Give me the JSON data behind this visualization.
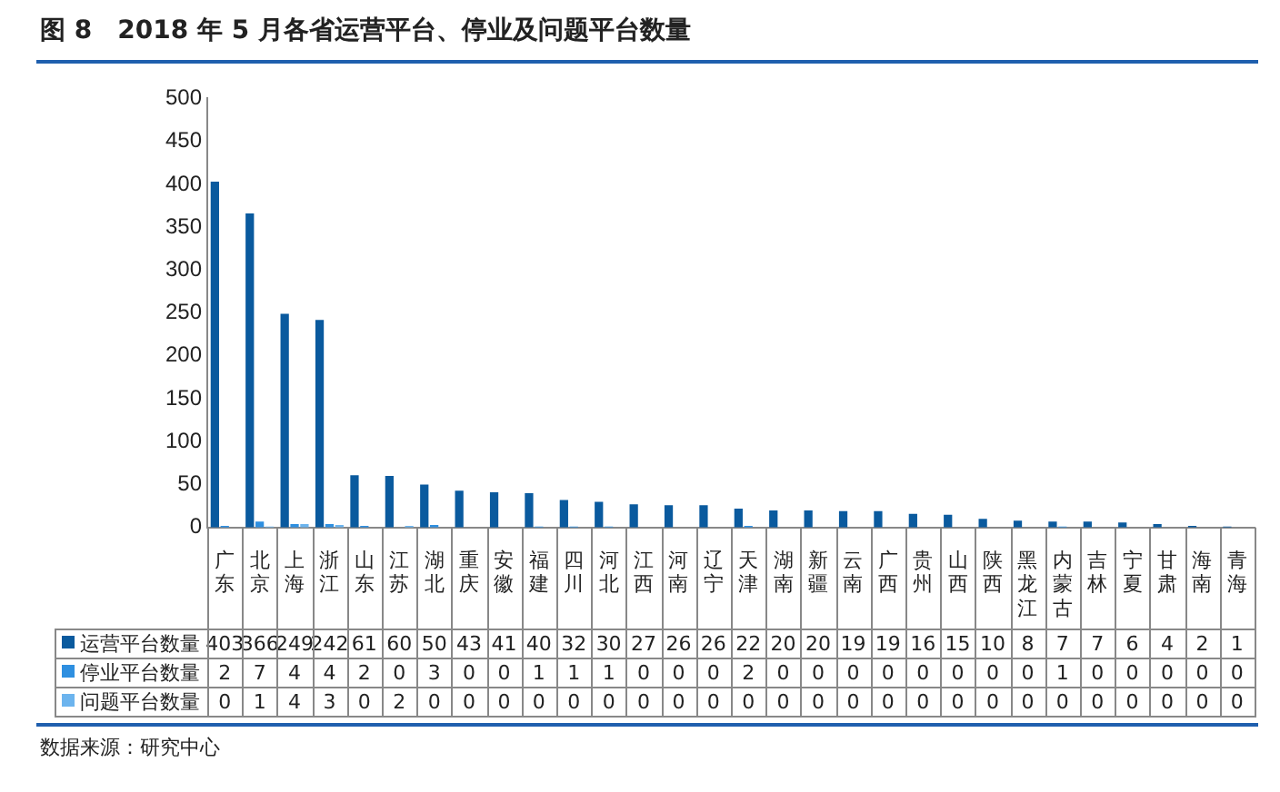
{
  "chart_data": {
    "type": "bar",
    "title": "图 8　2018 年 5 月各省运营平台、停业及问题平台数量",
    "categories": [
      "广东",
      "北京",
      "上海",
      "浙江",
      "山东",
      "江苏",
      "湖北",
      "重庆",
      "安徽",
      "福建",
      "四川",
      "河北",
      "江西",
      "河南",
      "辽宁",
      "天津",
      "湖南",
      "新疆",
      "云南",
      "广西",
      "贵州",
      "山西",
      "陕西",
      "黑龙江",
      "内蒙古",
      "吉林",
      "宁夏",
      "甘肃",
      "海南",
      "青海"
    ],
    "series": [
      {
        "name": "运营平台数量",
        "color": "#0a5a9e",
        "values": [
          403,
          366,
          249,
          242,
          61,
          60,
          50,
          43,
          41,
          40,
          32,
          30,
          27,
          26,
          26,
          22,
          20,
          20,
          19,
          19,
          16,
          15,
          10,
          8,
          7,
          7,
          6,
          4,
          2,
          1
        ]
      },
      {
        "name": "停业平台数量",
        "color": "#2e8fe0",
        "values": [
          2,
          7,
          4,
          4,
          2,
          0,
          3,
          0,
          0,
          1,
          1,
          1,
          0,
          0,
          0,
          2,
          0,
          0,
          0,
          0,
          0,
          0,
          0,
          0,
          1,
          0,
          0,
          0,
          0,
          0
        ]
      },
      {
        "name": "问题平台数量",
        "color": "#6cb4ee",
        "values": [
          0,
          1,
          4,
          3,
          0,
          2,
          0,
          0,
          0,
          0,
          0,
          0,
          0,
          0,
          0,
          0,
          0,
          0,
          0,
          0,
          0,
          0,
          0,
          0,
          0,
          0,
          0,
          0,
          0,
          0
        ]
      }
    ],
    "ylim": [
      0,
      500
    ],
    "yticks": [
      0,
      50,
      100,
      150,
      200,
      250,
      300,
      350,
      400,
      450,
      500
    ],
    "grid": false,
    "legend": "bottom",
    "data_labels": true,
    "annotations": [
      "数据来源：研究中心"
    ]
  }
}
